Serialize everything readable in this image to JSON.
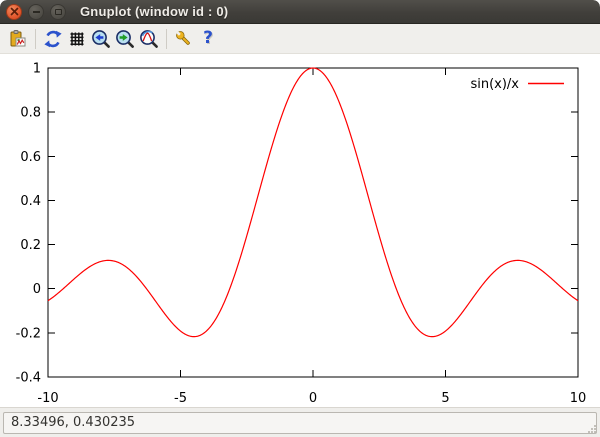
{
  "window": {
    "title": "Gnuplot (window id : 0)",
    "titlebar_buttons": [
      "close",
      "minimize",
      "maximize"
    ]
  },
  "toolbar": {
    "buttons": [
      {
        "id": "copy-to-clipboard",
        "icon": "clipboard-chart-icon"
      },
      {
        "id": "replot",
        "icon": "refresh-icon"
      },
      {
        "id": "toggle-grid",
        "icon": "grid-icon"
      },
      {
        "id": "previous-zoom",
        "icon": "zoom-previous-icon"
      },
      {
        "id": "next-zoom",
        "icon": "zoom-next-icon"
      },
      {
        "id": "autoscale",
        "icon": "zoom-autoscale-icon"
      },
      {
        "id": "options",
        "icon": "wrench-icon"
      },
      {
        "id": "help",
        "icon": "help-icon"
      }
    ],
    "help_glyph": "?"
  },
  "chart_data": {
    "type": "line",
    "function": "sin(x)/x",
    "x_range": [
      -10,
      10
    ],
    "y_range": [
      -0.4,
      1
    ],
    "x_ticks": [
      "-10",
      "-5",
      "0",
      "5",
      "10"
    ],
    "y_ticks": [
      "1",
      "0.8",
      "0.6",
      "0.4",
      "0.2",
      "0",
      "-0.2",
      "-0.4"
    ],
    "grid": false,
    "line_color": "#ff0000",
    "legend": {
      "position": "top-right",
      "entries": [
        {
          "label": "sin(x)/x",
          "color": "#ff0000"
        }
      ]
    },
    "sample_points": {
      "x": [
        -10,
        -9.5,
        -9,
        -8.5,
        -8,
        -7.5,
        -7,
        -6.5,
        -6,
        -5.5,
        -5,
        -4.5,
        -4,
        -3.5,
        -3,
        -2.5,
        -2,
        -1.5,
        -1,
        -0.5,
        0,
        0.5,
        1,
        1.5,
        2,
        2.5,
        3,
        3.5,
        4,
        4.5,
        5,
        5.5,
        6,
        6.5,
        7,
        7.5,
        8,
        8.5,
        9,
        9.5,
        10
      ],
      "y": [
        -0.0544,
        -0.0079,
        0.0458,
        0.0939,
        0.1237,
        0.1251,
        0.0939,
        0.0331,
        -0.0466,
        -0.1283,
        -0.1918,
        -0.2172,
        -0.1892,
        -0.1002,
        0.047,
        0.2394,
        0.4546,
        0.665,
        0.8415,
        0.9589,
        1.0,
        0.9589,
        0.8415,
        0.665,
        0.4546,
        0.2394,
        0.047,
        -0.1002,
        -0.1892,
        -0.2172,
        -0.1918,
        -0.1283,
        -0.0466,
        0.0331,
        0.0939,
        0.1251,
        0.1237,
        0.0939,
        0.0458,
        -0.0079,
        -0.0544
      ]
    }
  },
  "statusbar": {
    "coordinate_readout": "8.33496, 0.430235"
  }
}
